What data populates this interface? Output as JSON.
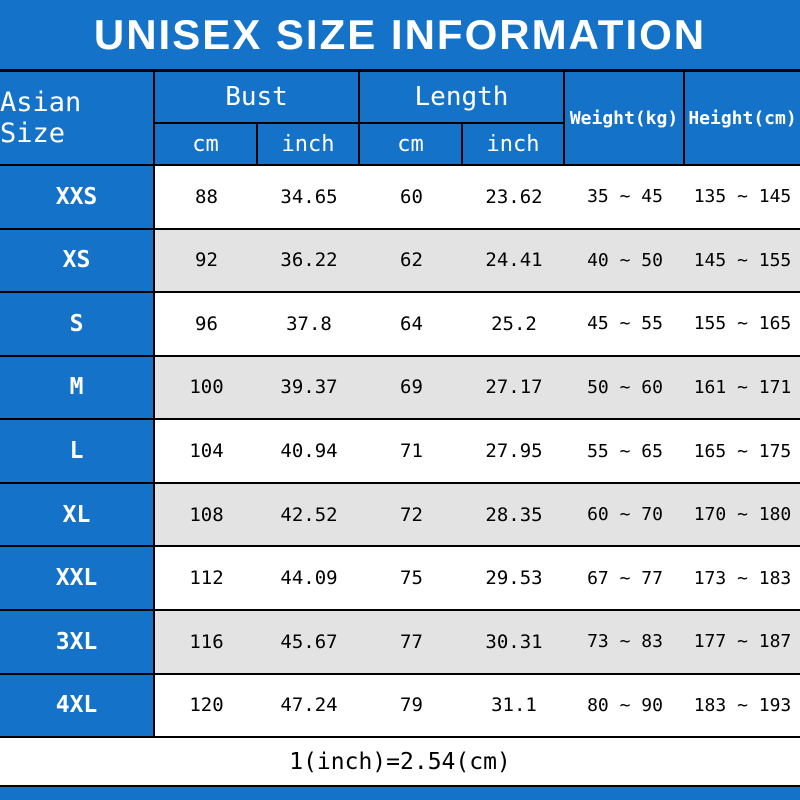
{
  "title": "UNISEX SIZE INFORMATION",
  "colors": {
    "header_blue": "#1472c8",
    "row_alt": "#e3e3e3",
    "line": "#000000",
    "text_light": "#ffffff",
    "text_dark": "#000000"
  },
  "header": {
    "corner": "Asian Size",
    "groups": [
      {
        "label": "Bust",
        "sub": [
          "cm",
          "inch"
        ]
      },
      {
        "label": "Length",
        "sub": [
          "cm",
          "inch"
        ]
      }
    ],
    "singles": [
      "Weight(kg)",
      "Height(cm)"
    ]
  },
  "rows": [
    {
      "size": "XXS",
      "bust_cm": "88",
      "bust_inch": "34.65",
      "length_cm": "60",
      "length_inch": "23.62",
      "weight": "35 ~ 45",
      "height": "135 ~ 145"
    },
    {
      "size": "XS",
      "bust_cm": "92",
      "bust_inch": "36.22",
      "length_cm": "62",
      "length_inch": "24.41",
      "weight": "40 ~ 50",
      "height": "145 ~ 155"
    },
    {
      "size": "S",
      "bust_cm": "96",
      "bust_inch": "37.8",
      "length_cm": "64",
      "length_inch": "25.2",
      "weight": "45 ~ 55",
      "height": "155 ~ 165"
    },
    {
      "size": "M",
      "bust_cm": "100",
      "bust_inch": "39.37",
      "length_cm": "69",
      "length_inch": "27.17",
      "weight": "50 ~ 60",
      "height": "161 ~ 171"
    },
    {
      "size": "L",
      "bust_cm": "104",
      "bust_inch": "40.94",
      "length_cm": "71",
      "length_inch": "27.95",
      "weight": "55 ~ 65",
      "height": "165 ~ 175"
    },
    {
      "size": "XL",
      "bust_cm": "108",
      "bust_inch": "42.52",
      "length_cm": "72",
      "length_inch": "28.35",
      "weight": "60 ~ 70",
      "height": "170 ~ 180"
    },
    {
      "size": "XXL",
      "bust_cm": "112",
      "bust_inch": "44.09",
      "length_cm": "75",
      "length_inch": "29.53",
      "weight": "67 ~ 77",
      "height": "173 ~ 183"
    },
    {
      "size": "3XL",
      "bust_cm": "116",
      "bust_inch": "45.67",
      "length_cm": "77",
      "length_inch": "30.31",
      "weight": "73 ~ 83",
      "height": "177 ~ 187"
    },
    {
      "size": "4XL",
      "bust_cm": "120",
      "bust_inch": "47.24",
      "length_cm": "79",
      "length_inch": "31.1",
      "weight": "80 ~ 90",
      "height": "183 ~ 193"
    }
  ],
  "footer": "1(inch)=2.54(cm)",
  "chart_data": {
    "type": "table",
    "title": "UNISEX SIZE INFORMATION",
    "columns": [
      "Asian Size",
      "Bust (cm)",
      "Bust (inch)",
      "Length (cm)",
      "Length (inch)",
      "Weight (kg)",
      "Height (cm)"
    ],
    "rows": [
      [
        "XXS",
        88,
        34.65,
        60,
        23.62,
        "35~45",
        "135~145"
      ],
      [
        "XS",
        92,
        36.22,
        62,
        24.41,
        "40~50",
        "145~155"
      ],
      [
        "S",
        96,
        37.8,
        64,
        25.2,
        "45~55",
        "155~165"
      ],
      [
        "M",
        100,
        39.37,
        69,
        27.17,
        "50~60",
        "161~171"
      ],
      [
        "L",
        104,
        40.94,
        71,
        27.95,
        "55~65",
        "165~175"
      ],
      [
        "XL",
        108,
        42.52,
        72,
        28.35,
        "60~70",
        "170~180"
      ],
      [
        "XXL",
        112,
        44.09,
        75,
        29.53,
        "67~77",
        "173~183"
      ],
      [
        "3XL",
        116,
        45.67,
        77,
        30.31,
        "73~83",
        "177~187"
      ],
      [
        "4XL",
        120,
        47.24,
        79,
        31.1,
        "80~90",
        "183~193"
      ]
    ],
    "note": "1(inch)=2.54(cm)"
  }
}
